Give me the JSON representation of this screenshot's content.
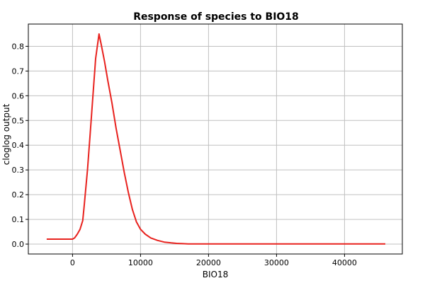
{
  "chart_data": {
    "type": "line",
    "title": "Response of species to BIO18",
    "xlabel": "BIO18",
    "ylabel": "cloglog output",
    "xlim": [
      -6500,
      48500
    ],
    "ylim": [
      -0.04,
      0.89
    ],
    "xticks": [
      0,
      10000,
      20000,
      30000,
      40000
    ],
    "xtick_labels": [
      "0",
      "10000",
      "20000",
      "30000",
      "40000"
    ],
    "yticks": [
      0.0,
      0.1,
      0.2,
      0.3,
      0.4,
      0.5,
      0.6,
      0.7,
      0.8
    ],
    "ytick_labels": [
      "0.0",
      "0.1",
      "0.2",
      "0.3",
      "0.4",
      "0.5",
      "0.6",
      "0.7",
      "0.8"
    ],
    "grid": true,
    "series": [
      {
        "color": "#e8221e",
        "x": [
          -3800,
          0,
          300,
          700,
          1100,
          1500,
          1700,
          2200,
          2600,
          3000,
          3400,
          3900,
          4200,
          4700,
          5200,
          5800,
          6400,
          7000,
          7600,
          8200,
          8800,
          9400,
          10000,
          10700,
          11500,
          12500,
          13500,
          14500,
          15300,
          16000,
          17000,
          46000
        ],
        "y": [
          0.02,
          0.02,
          0.025,
          0.04,
          0.06,
          0.095,
          0.15,
          0.3,
          0.45,
          0.6,
          0.75,
          0.85,
          0.81,
          0.74,
          0.66,
          0.57,
          0.47,
          0.38,
          0.29,
          0.21,
          0.14,
          0.09,
          0.06,
          0.04,
          0.025,
          0.015,
          0.008,
          0.005,
          0.003,
          0.002,
          0.001,
          0.001
        ]
      }
    ]
  }
}
